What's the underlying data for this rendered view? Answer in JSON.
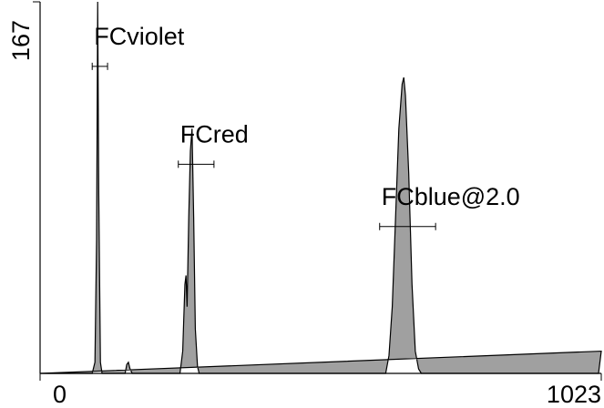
{
  "chart_data": {
    "type": "area",
    "x": [
      0,
      95,
      100,
      103,
      105,
      107,
      110,
      113,
      155,
      158,
      161,
      164,
      168,
      255,
      260,
      264,
      266,
      268,
      271,
      274,
      277,
      280,
      283,
      287,
      290,
      630,
      636,
      642,
      648,
      654,
      660,
      663,
      666,
      672,
      678,
      684,
      690,
      695,
      1018,
      1023
    ],
    "values": [
      0,
      0,
      5,
      60,
      167,
      80,
      5,
      0,
      0,
      4,
      5,
      2,
      0,
      0,
      10,
      40,
      44,
      30,
      70,
      100,
      110,
      70,
      20,
      3,
      0,
      0,
      8,
      30,
      70,
      110,
      130,
      133,
      125,
      90,
      40,
      10,
      2,
      0,
      0,
      10
    ],
    "color": "#a0a0a0",
    "xlim": [
      0,
      1023
    ],
    "xticks": [
      0,
      1023
    ],
    "ylim": [
      0,
      167
    ],
    "yticks": [
      167
    ],
    "gates": [
      {
        "label": "FCviolet",
        "x": [
          95,
          123
        ],
        "y": 138
      },
      {
        "label": "FCred",
        "x": [
          252,
          317
        ],
        "y": 94
      },
      {
        "label": "FCblue@2.0",
        "x": [
          619,
          721
        ],
        "y": 66
      }
    ]
  }
}
